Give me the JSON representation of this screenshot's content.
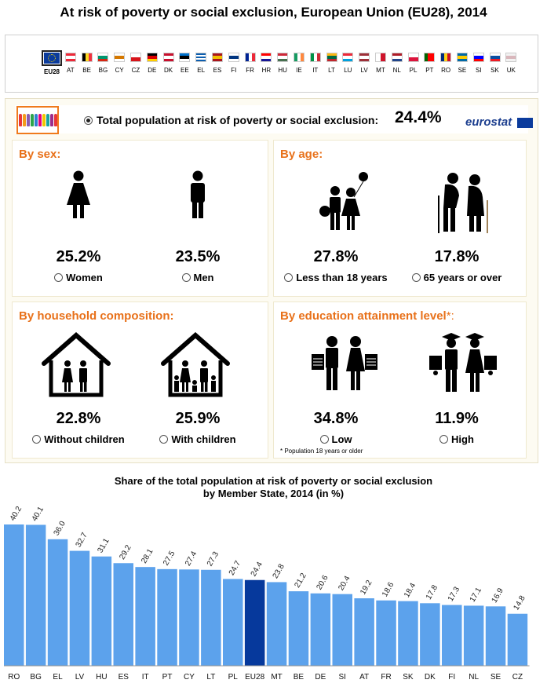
{
  "title": "At risk of poverty or social exclusion, European Union (EU28), 2014",
  "flags": [
    {
      "code": "EU28",
      "selected": true,
      "colors": [
        "#0b3b9c"
      ],
      "dir": "eu"
    },
    {
      "code": "AT",
      "colors": [
        "#ed2939",
        "#ffffff",
        "#ed2939"
      ],
      "dir": "h"
    },
    {
      "code": "BE",
      "colors": [
        "#000000",
        "#fdda24",
        "#ef3340"
      ],
      "dir": "v"
    },
    {
      "code": "BG",
      "colors": [
        "#ffffff",
        "#00966e",
        "#d62612"
      ],
      "dir": "h"
    },
    {
      "code": "CY",
      "colors": [
        "#ffffff",
        "#d57800",
        "#ffffff"
      ],
      "dir": "h"
    },
    {
      "code": "CZ",
      "colors": [
        "#ffffff",
        "#d7141a"
      ],
      "dir": "h"
    },
    {
      "code": "DE",
      "colors": [
        "#000000",
        "#dd0000",
        "#ffce00"
      ],
      "dir": "h"
    },
    {
      "code": "DK",
      "colors": [
        "#c8102e",
        "#ffffff",
        "#c8102e"
      ],
      "dir": "h"
    },
    {
      "code": "EE",
      "colors": [
        "#0072ce",
        "#000000",
        "#ffffff"
      ],
      "dir": "h"
    },
    {
      "code": "EL",
      "colors": [
        "#0d5eaf",
        "#ffffff",
        "#0d5eaf",
        "#ffffff",
        "#0d5eaf"
      ],
      "dir": "h"
    },
    {
      "code": "ES",
      "colors": [
        "#aa151b",
        "#f1bf00",
        "#aa151b"
      ],
      "dir": "h"
    },
    {
      "code": "FI",
      "colors": [
        "#ffffff",
        "#003580",
        "#ffffff"
      ],
      "dir": "h"
    },
    {
      "code": "FR",
      "colors": [
        "#002395",
        "#ffffff",
        "#ed2939"
      ],
      "dir": "v"
    },
    {
      "code": "HR",
      "colors": [
        "#ff0000",
        "#ffffff",
        "#171796"
      ],
      "dir": "h"
    },
    {
      "code": "HU",
      "colors": [
        "#ce2939",
        "#ffffff",
        "#477050"
      ],
      "dir": "h"
    },
    {
      "code": "IE",
      "colors": [
        "#169b62",
        "#ffffff",
        "#ff883e"
      ],
      "dir": "v"
    },
    {
      "code": "IT",
      "colors": [
        "#009246",
        "#ffffff",
        "#ce2b37"
      ],
      "dir": "v"
    },
    {
      "code": "LT",
      "colors": [
        "#fdb913",
        "#006a44",
        "#c1272d"
      ],
      "dir": "h"
    },
    {
      "code": "LU",
      "colors": [
        "#ed2939",
        "#ffffff",
        "#00a1de"
      ],
      "dir": "h"
    },
    {
      "code": "LV",
      "colors": [
        "#9e3039",
        "#ffffff",
        "#9e3039"
      ],
      "dir": "h"
    },
    {
      "code": "MT",
      "colors": [
        "#ffffff",
        "#cf142b"
      ],
      "dir": "v"
    },
    {
      "code": "NL",
      "colors": [
        "#ae1c28",
        "#ffffff",
        "#21468b"
      ],
      "dir": "h"
    },
    {
      "code": "PL",
      "colors": [
        "#ffffff",
        "#dc143c"
      ],
      "dir": "h"
    },
    {
      "code": "PT",
      "colors": [
        "#006600",
        "#ff0000",
        "#ff0000"
      ],
      "dir": "v"
    },
    {
      "code": "RO",
      "colors": [
        "#002b7f",
        "#fcd116",
        "#ce1126"
      ],
      "dir": "v"
    },
    {
      "code": "SE",
      "colors": [
        "#006aa7",
        "#fecc00",
        "#006aa7"
      ],
      "dir": "h"
    },
    {
      "code": "SI",
      "colors": [
        "#ffffff",
        "#0000ff",
        "#ff0000"
      ],
      "dir": "h"
    },
    {
      "code": "SK",
      "colors": [
        "#ffffff",
        "#0b4ea2",
        "#ee1c25"
      ],
      "dir": "h"
    },
    {
      "code": "UK",
      "colors": [
        "#f2f2f2",
        "#d9b7bc",
        "#f2f2f2"
      ],
      "dir": "h"
    }
  ],
  "total": {
    "label": "Total population at risk of poverty or social exclusion:",
    "value": "24.4%",
    "brand": "eurostat"
  },
  "panels": {
    "sex": {
      "heading": "By sex:",
      "items": [
        {
          "value": "25.2%",
          "label": "Women"
        },
        {
          "value": "23.5%",
          "label": "Men"
        }
      ]
    },
    "age": {
      "heading": "By age:",
      "items": [
        {
          "value": "27.8%",
          "label": "Less than 18 years"
        },
        {
          "value": "17.8%",
          "label": "65 years or over"
        }
      ]
    },
    "household": {
      "heading": "By household composition:",
      "items": [
        {
          "value": "22.8%",
          "label": "Without children"
        },
        {
          "value": "25.9%",
          "label": "With children"
        }
      ]
    },
    "education": {
      "heading": "By education attainment level",
      "heading_mark": "*:",
      "items": [
        {
          "value": "34.8%",
          "label": "Low"
        },
        {
          "value": "11.9%",
          "label": "High"
        }
      ],
      "footnote": "* Population 18 years or older"
    }
  },
  "colors": {
    "accent": "#e8711a",
    "bar": "#5ca2ec",
    "bar_highlight": "#06399c"
  },
  "chart_title_line1": "Share of the total population at risk of poverty or social exclusion",
  "chart_title_line2": "by Member State, 2014 (in %)",
  "chart_data": {
    "type": "bar",
    "title": "Share of the total population at risk of poverty or social exclusion by Member State, 2014 (in %)",
    "categories": [
      "RO",
      "BG",
      "EL",
      "LV",
      "HU",
      "ES",
      "IT",
      "PT",
      "CY",
      "LT",
      "PL",
      "EU28",
      "MT",
      "BE",
      "DE",
      "SI",
      "AT",
      "FR",
      "SK",
      "DK",
      "FI",
      "NL",
      "SE",
      "CZ"
    ],
    "values": [
      40.2,
      40.1,
      36.0,
      32.7,
      31.1,
      29.2,
      28.1,
      27.5,
      27.4,
      27.3,
      24.7,
      24.4,
      23.8,
      21.2,
      20.6,
      20.4,
      19.2,
      18.6,
      18.4,
      17.8,
      17.3,
      17.1,
      16.9,
      14.8
    ],
    "value_labels": [
      "40.2",
      "40.1",
      "36.0",
      "32.7",
      "31.1",
      "29.2",
      "28.1",
      "27.5",
      "27.4",
      "27.3",
      "24.7",
      "24.4",
      "23.8",
      "21.2",
      "20.6",
      "20.4",
      "19.2",
      "18.6",
      "18.4",
      "17.8",
      "17.3",
      "17.1",
      "16.9",
      "14.8"
    ],
    "highlight": "EU28",
    "ylim": [
      0,
      42
    ],
    "grid": false,
    "xlabel": "",
    "ylabel": ""
  }
}
